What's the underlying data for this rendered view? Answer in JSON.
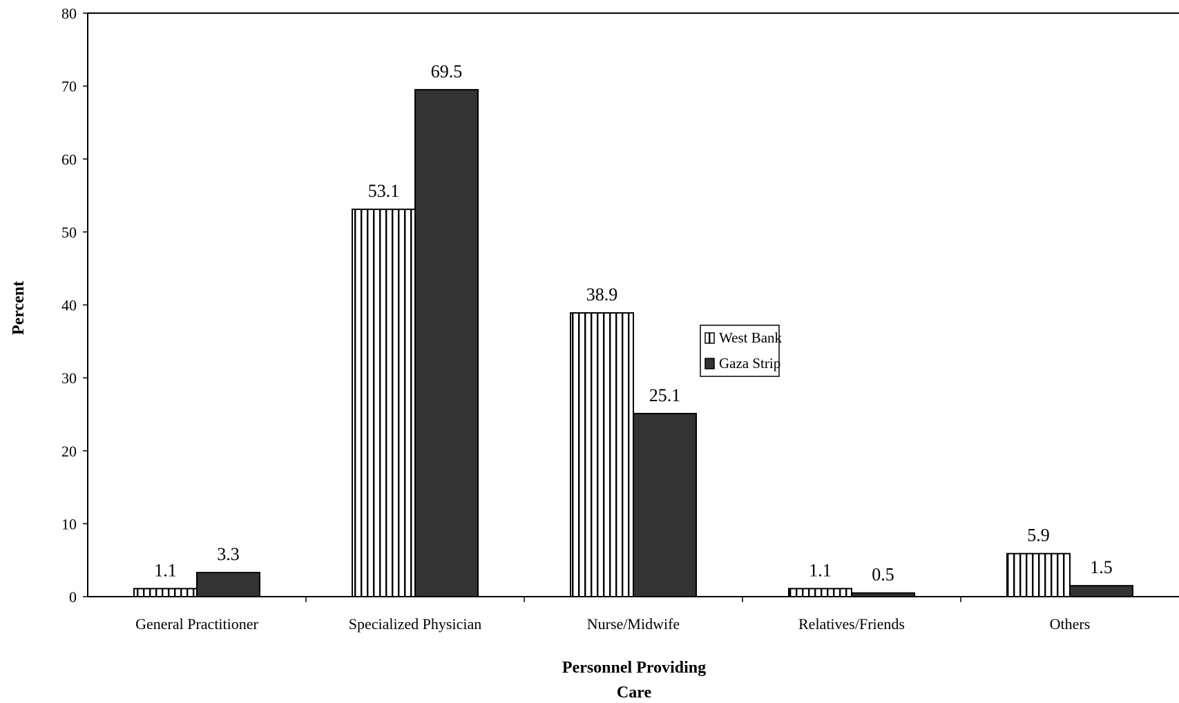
{
  "chart_data": {
    "type": "bar",
    "xlabel": "Personnel Providing Care",
    "ylabel": "Percent",
    "ylim": [
      0,
      80
    ],
    "yticks": [
      0,
      10,
      20,
      30,
      40,
      50,
      60,
      70,
      80
    ],
    "categories": [
      "General Practitioner",
      "Specialized Physician",
      "Nurse/Midwife",
      "Relatives/Friends",
      "Others"
    ],
    "series": [
      {
        "name": "West Bank",
        "values": [
          1.1,
          53.1,
          38.9,
          1.1,
          5.9
        ],
        "fill": "vertical-stripes"
      },
      {
        "name": "Gaza Strip",
        "values": [
          3.3,
          69.5,
          25.1,
          0.5,
          1.5
        ],
        "fill": "#333333"
      }
    ],
    "data_labels": [
      [
        "1.1",
        "53.1",
        "38.9",
        "1.1",
        "5.9"
      ],
      [
        "3.3",
        "69.5",
        "25.1",
        "0.5",
        "1.5"
      ]
    ],
    "legend_position": "center-right",
    "grid": false
  }
}
